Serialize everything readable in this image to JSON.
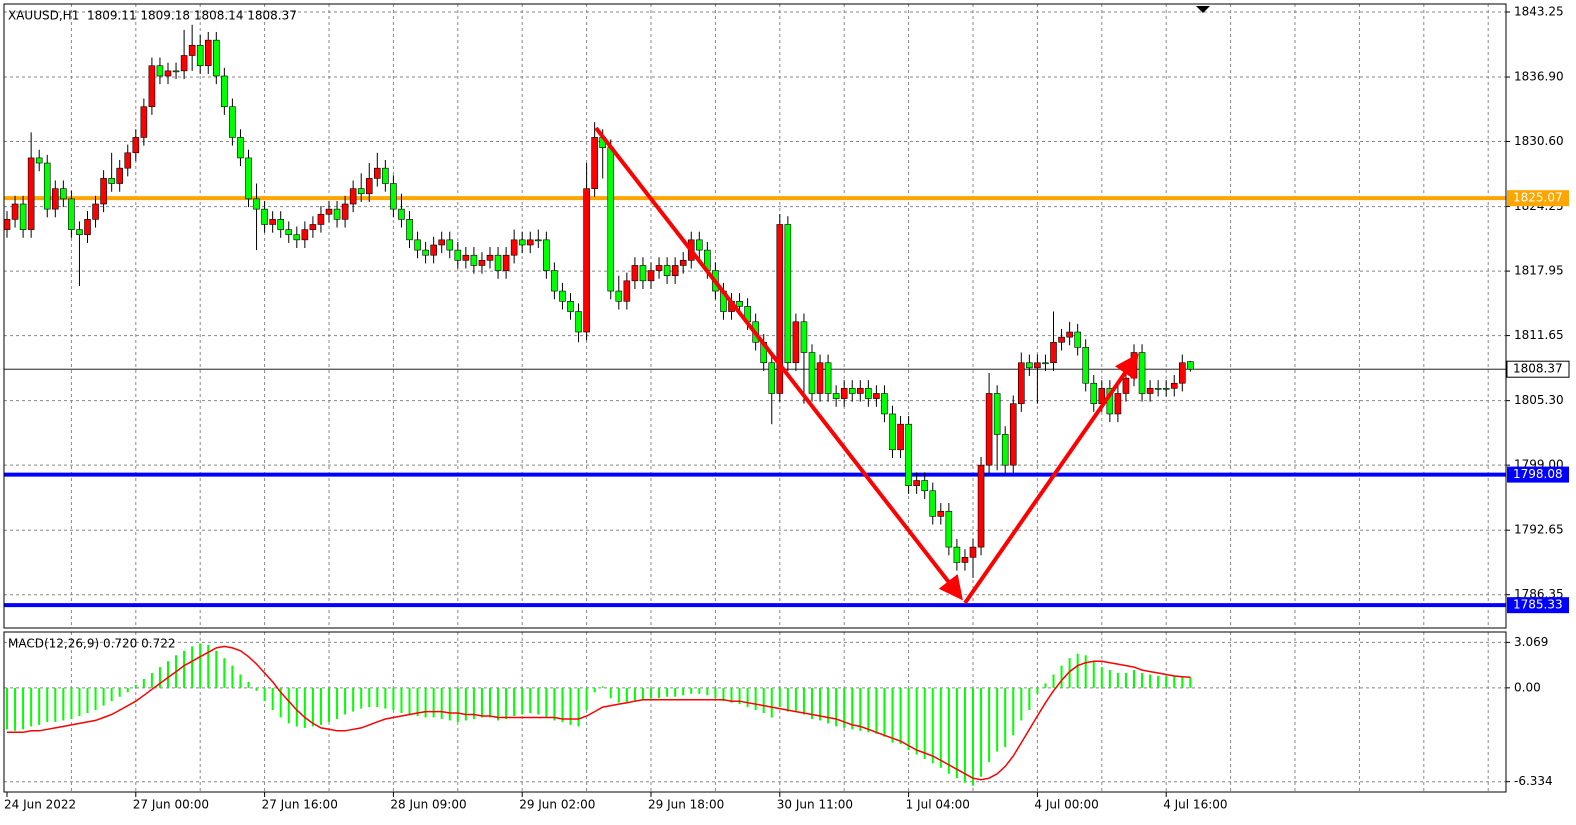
{
  "chart_data": [
    {
      "type": "candlestick",
      "title": "XAUUSD,H1  1809.11 1809.18 1808.14 1808.37",
      "categories": [
        "24 Jun 2022",
        null,
        null,
        null,
        null,
        null,
        null,
        null,
        null,
        null,
        null,
        null,
        null,
        null,
        null,
        null,
        "27 Jun 00:00",
        null,
        null,
        null,
        null,
        null,
        null,
        null,
        null,
        null,
        null,
        null,
        null,
        null,
        null,
        null,
        "27 Jun 16:00",
        null,
        null,
        null,
        null,
        null,
        null,
        null,
        null,
        null,
        null,
        null,
        null,
        null,
        null,
        null,
        "28 Jun 09:00",
        null,
        null,
        null,
        null,
        null,
        null,
        null,
        null,
        null,
        null,
        null,
        null,
        null,
        null,
        null,
        "29 Jun 02:00",
        null,
        null,
        null,
        null,
        null,
        null,
        null,
        null,
        null,
        null,
        null,
        null,
        null,
        null,
        null,
        "29 Jun 18:00",
        null,
        null,
        null,
        null,
        null,
        null,
        null,
        null,
        null,
        null,
        null,
        null,
        null,
        null,
        null,
        "30 Jun 11:00",
        null,
        null,
        null,
        null,
        null,
        null,
        null,
        null,
        null,
        null,
        null,
        null,
        null,
        null,
        null,
        "1 Jul 04:00",
        null,
        null,
        null,
        null,
        null,
        null,
        null,
        null,
        null,
        null,
        null,
        null,
        null,
        null,
        null,
        "4 Jul 00:00",
        null,
        null,
        null,
        null,
        null,
        null,
        null,
        null,
        null,
        null,
        null,
        null,
        null,
        null,
        null,
        "4 Jul 16:00",
        null,
        null,
        null
      ],
      "open": [
        1822.0,
        1823.0,
        1824.5,
        1822.0,
        1829.0,
        1828.5,
        1824.0,
        1826.0,
        1825.0,
        1822.0,
        1821.5,
        1823.0,
        1824.5,
        1827.0,
        1826.5,
        1828.0,
        1829.5,
        1831.0,
        1834.0,
        1838.0,
        1837.0,
        1837.5,
        1837.5,
        1839.0,
        1840.0,
        1838.0,
        1840.5,
        1837.0,
        1834.0,
        1831.0,
        1829.0,
        1825.0,
        1824.0,
        1822.5,
        1823.0,
        1822.0,
        1821.5,
        1821.0,
        1822.0,
        1822.5,
        1823.5,
        1824.0,
        1823.0,
        1824.5,
        1826.0,
        1825.5,
        1827.0,
        1828.0,
        1826.5,
        1824.0,
        1823.0,
        1821.0,
        1820.0,
        1819.5,
        1820.5,
        1821.0,
        1820.0,
        1819.0,
        1819.5,
        1818.5,
        1819.0,
        1819.5,
        1818.0,
        1819.5,
        1821.0,
        1820.5,
        1821.0,
        1821.0,
        1818.0,
        1816.0,
        1815.0,
        1814.0,
        1812.0,
        1826.0,
        1831.0,
        1830.0,
        1816.0,
        1815.0,
        1817.0,
        1818.5,
        1817.0,
        1818.0,
        1818.5,
        1817.5,
        1818.5,
        1819.0,
        1821.0,
        1820.0,
        1818.0,
        1816.0,
        1814.0,
        1815.0,
        1814.5,
        1813.0,
        1811.0,
        1809.0,
        1806.0,
        1822.5,
        1809.0,
        1813.0,
        1810.0,
        1806.0,
        1809.0,
        1806.0,
        1805.5,
        1806.5,
        1806.0,
        1806.5,
        1805.5,
        1806.0,
        1804.0,
        1800.5,
        1803.0,
        1797.0,
        1797.5,
        1796.5,
        1794.0,
        1794.5,
        1791.0,
        1789.5,
        1790.0,
        1791.0,
        1799.0,
        1806.0,
        1802.0,
        1799.0,
        1805.0,
        1809.0,
        1808.5,
        1809.0,
        1809.0,
        1811.0,
        1811.5,
        1812.0,
        1810.5,
        1807.0,
        1805.0,
        1806.5,
        1804.0,
        1806.0,
        1807.5,
        1810.0,
        1806.0,
        1806.5,
        1806.5,
        1806.5,
        1807.0,
        1809.11
      ],
      "high": [
        1823.8,
        1825.3,
        1825.3,
        1831.5,
        1829.8,
        1829.3,
        1826.8,
        1826.8,
        1825.8,
        1822.8,
        1823.8,
        1825.3,
        1827.8,
        1829.5,
        1828.8,
        1830.3,
        1831.8,
        1834.8,
        1838.8,
        1838.8,
        1838.3,
        1838.3,
        1841.5,
        1842.0,
        1841.0,
        1841.3,
        1841.3,
        1837.8,
        1834.8,
        1831.8,
        1829.8,
        1826.5,
        1824.8,
        1823.8,
        1823.8,
        1822.8,
        1822.3,
        1822.8,
        1823.3,
        1824.3,
        1824.8,
        1824.8,
        1825.3,
        1826.8,
        1827.5,
        1828.5,
        1829.5,
        1828.8,
        1827.3,
        1825.5,
        1823.8,
        1821.8,
        1820.8,
        1821.3,
        1821.8,
        1821.8,
        1820.8,
        1820.3,
        1820.3,
        1819.8,
        1820.3,
        1820.3,
        1820.3,
        1822.0,
        1821.8,
        1821.8,
        1822.0,
        1821.8,
        1818.8,
        1816.8,
        1815.8,
        1814.8,
        1828.5,
        1832.5,
        1831.8,
        1830.8,
        1817.5,
        1817.8,
        1819.3,
        1819.3,
        1818.8,
        1819.3,
        1819.3,
        1819.3,
        1819.8,
        1821.8,
        1821.8,
        1820.8,
        1818.8,
        1816.8,
        1815.8,
        1815.8,
        1815.3,
        1813.8,
        1811.8,
        1809.8,
        1823.5,
        1823.3,
        1813.8,
        1813.8,
        1810.8,
        1809.8,
        1809.8,
        1806.8,
        1807.3,
        1807.3,
        1807.3,
        1807.3,
        1806.8,
        1806.8,
        1804.8,
        1803.8,
        1803.8,
        1798.3,
        1798.3,
        1797.3,
        1795.3,
        1795.3,
        1791.8,
        1790.8,
        1791.8,
        1799.8,
        1808.0,
        1806.8,
        1802.8,
        1805.8,
        1810.0,
        1809.8,
        1809.8,
        1809.8,
        1814.0,
        1812.3,
        1813.0,
        1812.8,
        1811.3,
        1807.8,
        1807.3,
        1807.3,
        1806.8,
        1808.3,
        1810.8,
        1810.8,
        1807.3,
        1807.3,
        1807.3,
        1807.8,
        1809.8,
        1809.18
      ],
      "low": [
        1821.2,
        1822.2,
        1821.2,
        1821.2,
        1827.7,
        1823.2,
        1823.2,
        1824.2,
        1821.2,
        1816.5,
        1820.7,
        1822.2,
        1823.7,
        1825.7,
        1825.7,
        1827.2,
        1828.7,
        1830.2,
        1833.2,
        1836.2,
        1836.2,
        1836.7,
        1836.7,
        1837.5,
        1837.2,
        1837.2,
        1836.2,
        1833.2,
        1830.2,
        1828.2,
        1824.2,
        1820.0,
        1821.7,
        1821.7,
        1821.2,
        1820.7,
        1820.2,
        1820.2,
        1821.2,
        1821.7,
        1822.7,
        1822.2,
        1822.2,
        1823.7,
        1824.7,
        1824.7,
        1826.2,
        1825.7,
        1823.2,
        1822.2,
        1820.2,
        1819.2,
        1818.7,
        1818.7,
        1819.7,
        1819.2,
        1818.2,
        1818.2,
        1817.7,
        1817.7,
        1818.2,
        1817.2,
        1817.2,
        1818.7,
        1819.7,
        1819.7,
        1820.2,
        1817.2,
        1815.2,
        1814.2,
        1813.2,
        1811.0,
        1811.2,
        1825.2,
        1827.0,
        1815.2,
        1814.2,
        1814.2,
        1816.2,
        1816.2,
        1816.2,
        1817.2,
        1816.7,
        1816.7,
        1817.7,
        1818.2,
        1819.2,
        1817.2,
        1815.2,
        1813.2,
        1813.2,
        1813.7,
        1812.2,
        1810.2,
        1808.2,
        1803.0,
        1805.2,
        1808.2,
        1808.2,
        1805.0,
        1805.2,
        1805.2,
        1805.2,
        1804.7,
        1804.7,
        1805.2,
        1805.2,
        1804.7,
        1804.7,
        1803.2,
        1799.7,
        1799.7,
        1796.2,
        1796.2,
        1795.7,
        1793.2,
        1793.2,
        1790.2,
        1788.7,
        1788.7,
        1788.0,
        1790.2,
        1798.2,
        1798.5,
        1798.0,
        1798.2,
        1804.2,
        1807.7,
        1805.0,
        1808.2,
        1808.2,
        1810.2,
        1810.7,
        1809.7,
        1806.2,
        1804.2,
        1804.2,
        1803.2,
        1803.2,
        1805.2,
        1806.7,
        1805.2,
        1805.2,
        1805.7,
        1805.7,
        1805.7,
        1806.2,
        1808.14
      ],
      "close": [
        1823.0,
        1824.5,
        1822.0,
        1829.0,
        1828.5,
        1824.0,
        1826.0,
        1825.0,
        1822.0,
        1821.5,
        1823.0,
        1824.5,
        1827.0,
        1826.5,
        1828.0,
        1829.5,
        1831.0,
        1834.0,
        1838.0,
        1837.0,
        1837.5,
        1837.5,
        1839.0,
        1840.0,
        1838.0,
        1840.5,
        1837.0,
        1834.0,
        1831.0,
        1829.0,
        1825.0,
        1824.0,
        1822.5,
        1823.0,
        1822.0,
        1821.5,
        1821.0,
        1822.0,
        1822.5,
        1823.5,
        1824.0,
        1823.0,
        1824.5,
        1826.0,
        1825.5,
        1827.0,
        1828.0,
        1826.5,
        1824.0,
        1823.0,
        1821.0,
        1820.0,
        1819.5,
        1820.5,
        1821.0,
        1820.0,
        1819.0,
        1819.5,
        1818.5,
        1819.0,
        1819.5,
        1818.0,
        1819.5,
        1821.0,
        1820.5,
        1821.0,
        1821.0,
        1818.0,
        1816.0,
        1815.0,
        1814.0,
        1812.0,
        1826.0,
        1831.0,
        1830.0,
        1816.0,
        1815.0,
        1817.0,
        1818.5,
        1817.0,
        1818.0,
        1818.5,
        1817.5,
        1818.5,
        1819.0,
        1821.0,
        1820.0,
        1818.0,
        1816.0,
        1814.0,
        1815.0,
        1814.5,
        1813.0,
        1811.0,
        1809.0,
        1806.0,
        1822.5,
        1809.0,
        1813.0,
        1810.0,
        1806.0,
        1809.0,
        1806.0,
        1805.5,
        1806.5,
        1806.0,
        1806.5,
        1805.5,
        1806.0,
        1804.0,
        1800.5,
        1803.0,
        1797.0,
        1797.5,
        1796.5,
        1794.0,
        1794.5,
        1791.0,
        1789.5,
        1790.0,
        1791.0,
        1799.0,
        1806.0,
        1802.0,
        1799.0,
        1805.0,
        1809.0,
        1808.5,
        1809.0,
        1809.0,
        1811.0,
        1811.5,
        1812.0,
        1810.5,
        1807.0,
        1805.0,
        1806.5,
        1804.0,
        1806.0,
        1807.5,
        1810.0,
        1806.0,
        1806.5,
        1806.5,
        1806.5,
        1807.0,
        1809.0,
        1808.37
      ],
      "up_color": "#ff0000",
      "down_color": "#00ff00",
      "ylim": [
        1783.1,
        1844.42
      ],
      "yticks": [
        1843.25,
        {
          "value": 1836.9,
          "label": "1836.90"
        },
        {
          "value": 1830.6,
          "label": "1830.60"
        },
        1824.25,
        1817.95,
        1811.65,
        {
          "value": 1805.3,
          "label": "1805.30"
        },
        {
          "value": 1799,
          "label": "1799.00"
        },
        1792.65,
        1786.35
      ],
      "grid": true,
      "levels": [
        {
          "value": 1825.07,
          "color": "#ffa500"
        },
        {
          "value": 1798.08,
          "color": "#0000ff"
        },
        {
          "value": 1785.33,
          "color": "#0000ff"
        }
      ]
    },
    {
      "type": "macd",
      "title": "MACD(12,26,9) 0.720 0.722",
      "series": [
        {
          "type": "bar",
          "color": "#00ff00",
          "values": [
            -2.8,
            -2.9,
            -2.8,
            -2.6,
            -2.5,
            -2.3,
            -2.3,
            -2.2,
            -2.1,
            -1.9,
            -1.7,
            -1.5,
            -1.2,
            -0.9,
            -0.6,
            -0.3,
            0.2,
            0.6,
            1.0,
            1.4,
            1.8,
            2.2,
            2.5,
            2.8,
            3.0,
            2.9,
            2.5,
            2.0,
            1.5,
            0.9,
            0.4,
            -0.2,
            -0.9,
            -1.5,
            -2.0,
            -2.4,
            -2.6,
            -2.7,
            -2.6,
            -2.5,
            -2.3,
            -2.1,
            -1.8,
            -1.6,
            -1.4,
            -1.3,
            -1.3,
            -1.4,
            -1.5,
            -1.7,
            -1.8,
            -1.9,
            -2.0,
            -2.0,
            -2.1,
            -2.2,
            -2.3,
            -2.2,
            -2.1,
            -2.0,
            -2.0,
            -2.2,
            -2.1,
            -1.9,
            -1.8,
            -1.7,
            -1.8,
            -2.0,
            -2.2,
            -2.3,
            -2.5,
            -2.6,
            -1.5,
            -0.3,
            0.1,
            -0.7,
            -1.0,
            -1.0,
            -0.9,
            -0.8,
            -0.7,
            -0.7,
            -0.6,
            -0.6,
            -0.5,
            -0.4,
            -0.4,
            -0.5,
            -0.7,
            -0.9,
            -1.0,
            -1.1,
            -1.3,
            -1.5,
            -1.7,
            -2.0,
            -1.3,
            -1.6,
            -1.6,
            -1.8,
            -2.1,
            -2.2,
            -2.4,
            -2.6,
            -2.7,
            -2.8,
            -2.9,
            -3.0,
            -3.1,
            -3.3,
            -3.7,
            -3.8,
            -4.2,
            -4.5,
            -4.8,
            -5.1,
            -5.4,
            -5.8,
            -6.1,
            -6.4,
            -6.6,
            -6.0,
            -5.0,
            -4.3,
            -4.0,
            -3.2,
            -2.2,
            -1.5,
            -0.4,
            0.3,
            0.9,
            1.5,
            2.0,
            2.3,
            2.2,
            1.8,
            1.4,
            1.2,
            1.0,
            1.0,
            1.2,
            1.0,
            0.9,
            0.8,
            0.8,
            0.8,
            0.8,
            0.72
          ]
        },
        {
          "type": "line",
          "color": "#ff0000",
          "values": [
            -3.0,
            -3.0,
            -3.0,
            -2.9,
            -2.9,
            -2.8,
            -2.7,
            -2.6,
            -2.5,
            -2.4,
            -2.3,
            -2.2,
            -2.0,
            -1.8,
            -1.5,
            -1.2,
            -0.9,
            -0.5,
            -0.1,
            0.3,
            0.7,
            1.1,
            1.5,
            1.8,
            2.1,
            2.4,
            2.7,
            2.8,
            2.7,
            2.5,
            2.1,
            1.6,
            1.0,
            0.4,
            -0.3,
            -0.9,
            -1.5,
            -2.0,
            -2.4,
            -2.7,
            -2.8,
            -2.9,
            -2.9,
            -2.8,
            -2.7,
            -2.5,
            -2.3,
            -2.1,
            -2.0,
            -1.9,
            -1.8,
            -1.7,
            -1.6,
            -1.6,
            -1.6,
            -1.7,
            -1.7,
            -1.8,
            -1.8,
            -1.9,
            -1.9,
            -2.0,
            -2.0,
            -2.0,
            -2.0,
            -2.0,
            -2.0,
            -2.0,
            -2.0,
            -2.1,
            -2.1,
            -2.1,
            -1.9,
            -1.6,
            -1.3,
            -1.2,
            -1.1,
            -1.0,
            -0.9,
            -0.8,
            -0.8,
            -0.8,
            -0.8,
            -0.8,
            -0.8,
            -0.8,
            -0.8,
            -0.8,
            -0.8,
            -0.8,
            -0.9,
            -0.9,
            -1.0,
            -1.1,
            -1.2,
            -1.3,
            -1.4,
            -1.5,
            -1.6,
            -1.7,
            -1.8,
            -1.9,
            -2.0,
            -2.1,
            -2.3,
            -2.5,
            -2.6,
            -2.8,
            -3.0,
            -3.2,
            -3.4,
            -3.6,
            -3.9,
            -4.2,
            -4.4,
            -4.6,
            -4.9,
            -5.2,
            -5.5,
            -5.8,
            -6.1,
            -6.2,
            -6.1,
            -5.8,
            -5.3,
            -4.6,
            -3.7,
            -2.8,
            -1.9,
            -1.0,
            -0.2,
            0.5,
            1.1,
            1.5,
            1.7,
            1.8,
            1.8,
            1.7,
            1.6,
            1.5,
            1.4,
            1.2,
            1.1,
            1.0,
            0.9,
            0.8,
            0.75,
            0.722
          ]
        }
      ],
      "ylim": [
        -7.03,
        3.77
      ],
      "yticks": [
        3.069,
        {
          "value": 0,
          "label": "0.00"
        },
        -6.334
      ]
    }
  ]
}
